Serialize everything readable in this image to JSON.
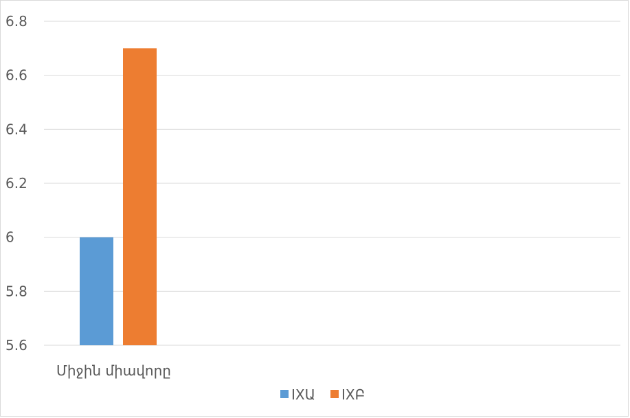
{
  "chart_data": {
    "type": "bar",
    "categories": [
      "Միջին միավորը"
    ],
    "series": [
      {
        "name": "IXԱ",
        "values": [
          6.0
        ],
        "color": "#5b9bd5"
      },
      {
        "name": "IXԲ",
        "values": [
          6.7
        ],
        "color": "#ed7d31"
      }
    ],
    "ylim": [
      5.6,
      6.8
    ],
    "yticks": [
      5.6,
      5.8,
      6,
      6.2,
      6.4,
      6.6,
      6.8
    ],
    "ytick_labels": [
      "5.6",
      "5.8",
      "6",
      "6.2",
      "6.4",
      "6.6",
      "6.8"
    ],
    "grid": true,
    "legend_position": "bottom",
    "gridline_color": "#d9d9d9",
    "title": "",
    "xlabel": "",
    "ylabel": ""
  }
}
